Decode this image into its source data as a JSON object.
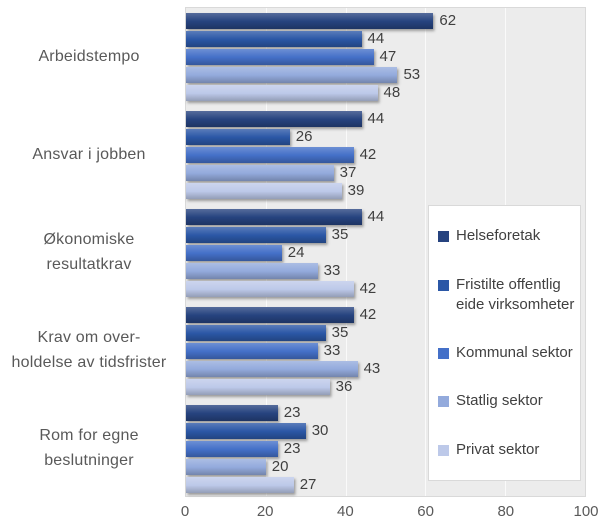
{
  "chart_data": {
    "type": "bar",
    "orientation": "horizontal",
    "title": "",
    "xlabel": "",
    "ylabel": "",
    "xlim": [
      0,
      100
    ],
    "x_ticks": [
      0,
      20,
      40,
      60,
      80,
      100
    ],
    "grid": true,
    "legend_position": "right-overlay",
    "categories": [
      {
        "label": "Arbeidstempo",
        "lines": [
          "Arbeidstempo"
        ]
      },
      {
        "label": "Ansvar i jobben",
        "lines": [
          "Ansvar i jobben"
        ]
      },
      {
        "label": "Økonomiske resultatkrav",
        "lines": [
          "Økonomiske",
          "resultatkrav"
        ]
      },
      {
        "label": "Krav om overholdelse av tidsfrister",
        "lines": [
          "Krav om over-",
          "holdelse av tidsfrister"
        ]
      },
      {
        "label": "Rom for egne beslutninger",
        "lines": [
          "Rom for egne",
          "beslutninger"
        ]
      }
    ],
    "series": [
      {
        "name": "Helseforetak",
        "color": "#26437F",
        "values": [
          62,
          44,
          44,
          42,
          23
        ]
      },
      {
        "name": "Fristilte offentlig eide virksomheter",
        "color": "#2B57A6",
        "values": [
          44,
          26,
          35,
          35,
          30
        ]
      },
      {
        "name": "Kommunal sektor",
        "color": "#4470C8",
        "values": [
          47,
          42,
          24,
          33,
          23
        ]
      },
      {
        "name": "Statlig sektor",
        "color": "#93AADC",
        "values": [
          53,
          37,
          33,
          43,
          20
        ]
      },
      {
        "name": "Privat sektor",
        "color": "#BDC9E9",
        "values": [
          48,
          39,
          42,
          36,
          27
        ]
      }
    ],
    "style": {
      "plot_background": "#ECECEC",
      "gridline_color": "#FAFAFA",
      "plot_border_color": "#D9D9D9",
      "category_label_color": "#595959",
      "value_label_color": "#3F3F3F",
      "tick_label_color": "#595959",
      "legend_text_color": "#404040",
      "legend_background": "#FFFFFF"
    }
  }
}
